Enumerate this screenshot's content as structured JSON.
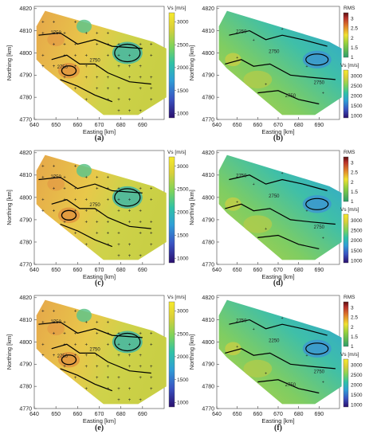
{
  "figure": {
    "panel_labels": [
      "(a)",
      "(b)",
      "(c)",
      "(d)",
      "(e)",
      "(f)"
    ]
  },
  "axes": {
    "xlabel": "Easting [km]",
    "ylabel": "Northing [km]",
    "xticks": [
      640,
      650,
      660,
      670,
      680,
      690
    ],
    "yticks": [
      4770,
      4780,
      4790,
      4800,
      4810,
      4820
    ]
  },
  "colorbars": {
    "vs_title": "Vs [m/s]",
    "vs_ticks_left": [
      1000,
      1500,
      2000,
      2500,
      3000
    ],
    "vs_ticks_right": [
      1000,
      1500,
      2000,
      2500,
      3000
    ],
    "rms_title": "RMS",
    "rms_ticks": [
      1,
      1.5,
      2,
      2.5,
      3
    ]
  },
  "colors": {
    "vs_scale": [
      "#2a0f6e",
      "#3a53c2",
      "#2f9fd6",
      "#2fc2a6",
      "#7fd35a",
      "#d9cf3a",
      "#f7ea2a"
    ],
    "rms_scale": [
      "#2b9e6a",
      "#8fcf3f",
      "#f0e02f",
      "#e07f2a",
      "#b8302a",
      "#5a0f10"
    ],
    "contour": "#000000",
    "station": "#111111"
  },
  "chart_data": [
    {
      "panel": "(a)",
      "type": "heatmap",
      "xlabel": "Easting [km]",
      "ylabel": "Northing [km]",
      "xlim": [
        640,
        700
      ],
      "ylim": [
        4770,
        4821
      ],
      "colorbar": "Vs [m/s]",
      "colorbar_range": [
        900,
        3200
      ],
      "contour_labels": [
        2750,
        2750,
        2750
      ]
    },
    {
      "panel": "(b)",
      "type": "heatmap",
      "xlabel": "Easting [km]",
      "ylabel": "Northing [km]",
      "xlim": [
        640,
        700
      ],
      "ylim": [
        4770,
        4821
      ],
      "colorbars": [
        "RMS",
        "Vs [m/s]"
      ],
      "contour_labels": [
        2250,
        2750,
        2750,
        2750
      ]
    },
    {
      "panel": "(c)",
      "type": "heatmap",
      "xlabel": "Easting [km]",
      "ylabel": "Northing [km]",
      "xlim": [
        640,
        700
      ],
      "ylim": [
        4770,
        4821
      ],
      "colorbar": "Vs [m/s]",
      "colorbar_range": [
        900,
        3200
      ],
      "contour_labels": [
        2750,
        2750
      ]
    },
    {
      "panel": "(d)",
      "type": "heatmap",
      "xlabel": "Easting [km]",
      "ylabel": "Northing [km]",
      "xlim": [
        640,
        700
      ],
      "ylim": [
        4770,
        4821
      ],
      "colorbars": [
        "RMS",
        "Vs [m/s]"
      ],
      "contour_labels": [
        2750,
        2750,
        2750
      ]
    },
    {
      "panel": "(e)",
      "type": "heatmap",
      "xlabel": "Easting [km]",
      "ylabel": "Northing [km]",
      "xlim": [
        640,
        700
      ],
      "ylim": [
        4770,
        4821
      ],
      "colorbar": "Vs [m/s]",
      "colorbar_range": [
        900,
        3200
      ],
      "contour_labels": [
        2750,
        2750,
        2750
      ]
    },
    {
      "panel": "(f)",
      "type": "heatmap",
      "xlabel": "Easting [km]",
      "ylabel": "Northing [km]",
      "xlim": [
        640,
        700
      ],
      "ylim": [
        4770,
        4821
      ],
      "colorbars": [
        "RMS",
        "Vs [m/s]"
      ],
      "contour_labels": [
        2750,
        2250,
        2750,
        2750
      ]
    }
  ]
}
